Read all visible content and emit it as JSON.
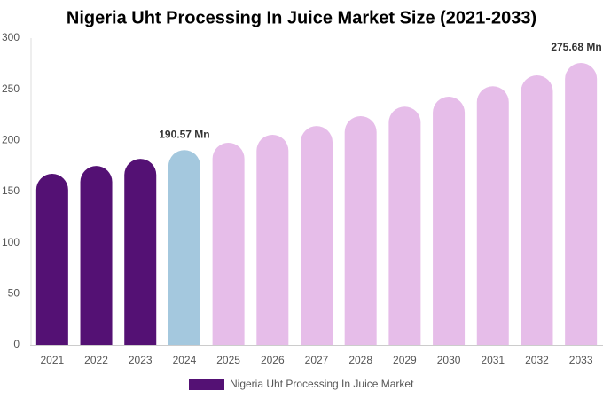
{
  "chart_data": {
    "type": "bar",
    "title": "Nigeria Uht Processing In Juice Market Size (2021-2033)",
    "categories": [
      "2021",
      "2022",
      "2023",
      "2024",
      "2025",
      "2026",
      "2027",
      "2028",
      "2029",
      "2030",
      "2031",
      "2032",
      "2033"
    ],
    "series": [
      {
        "name": "Nigeria Uht Processing In Juice Market",
        "color": "#541174",
        "values": [
          167.3,
          175,
          182,
          190.57,
          197.7,
          205.5,
          214,
          223.7,
          233,
          242.8,
          253,
          263.6,
          275.68
        ],
        "value_labels": [
          null,
          null,
          null,
          "190.57 Mn",
          null,
          null,
          null,
          null,
          null,
          null,
          null,
          null,
          "275.68 Mn"
        ],
        "bar_colors": [
          "#541174",
          "#541174",
          "#541174",
          "#a4c8de",
          "#e6bde9",
          "#e6bde9",
          "#e6bde9",
          "#e6bde9",
          "#e6bde9",
          "#e6bde9",
          "#e6bde9",
          "#e6bde9",
          "#e6bde9"
        ]
      }
    ],
    "ylim": [
      0,
      300
    ],
    "yticks": [
      0,
      50,
      100,
      150,
      200,
      250,
      300
    ],
    "grid": false,
    "legend": "bottom"
  }
}
